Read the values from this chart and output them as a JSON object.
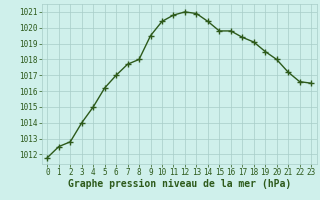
{
  "x": [
    0,
    1,
    2,
    3,
    4,
    5,
    6,
    7,
    8,
    9,
    10,
    11,
    12,
    13,
    14,
    15,
    16,
    17,
    18,
    19,
    20,
    21,
    22,
    23
  ],
  "y": [
    1011.8,
    1012.5,
    1012.8,
    1014.0,
    1015.0,
    1016.2,
    1017.0,
    1017.7,
    1018.0,
    1019.5,
    1020.4,
    1020.8,
    1021.0,
    1020.9,
    1020.4,
    1019.8,
    1019.8,
    1019.4,
    1019.1,
    1018.5,
    1018.0,
    1017.2,
    1016.6,
    1016.5
  ],
  "line_color": "#2d5a1b",
  "marker": "+",
  "markersize": 4,
  "linewidth": 1.0,
  "bg_color": "#cff0eb",
  "grid_color": "#a8cdc8",
  "xlabel": "Graphe pression niveau de la mer (hPa)",
  "xlabel_fontsize": 7,
  "xtick_labels": [
    "0",
    "1",
    "2",
    "3",
    "4",
    "5",
    "6",
    "7",
    "8",
    "9",
    "10",
    "11",
    "12",
    "13",
    "14",
    "15",
    "16",
    "17",
    "18",
    "19",
    "20",
    "21",
    "22",
    "23"
  ],
  "ytick_min": 1012,
  "ytick_max": 1021,
  "ytick_step": 1,
  "ylim_min": 1011.4,
  "ylim_max": 1021.5,
  "xlim_min": -0.5,
  "xlim_max": 23.5,
  "tick_fontsize": 5.5
}
